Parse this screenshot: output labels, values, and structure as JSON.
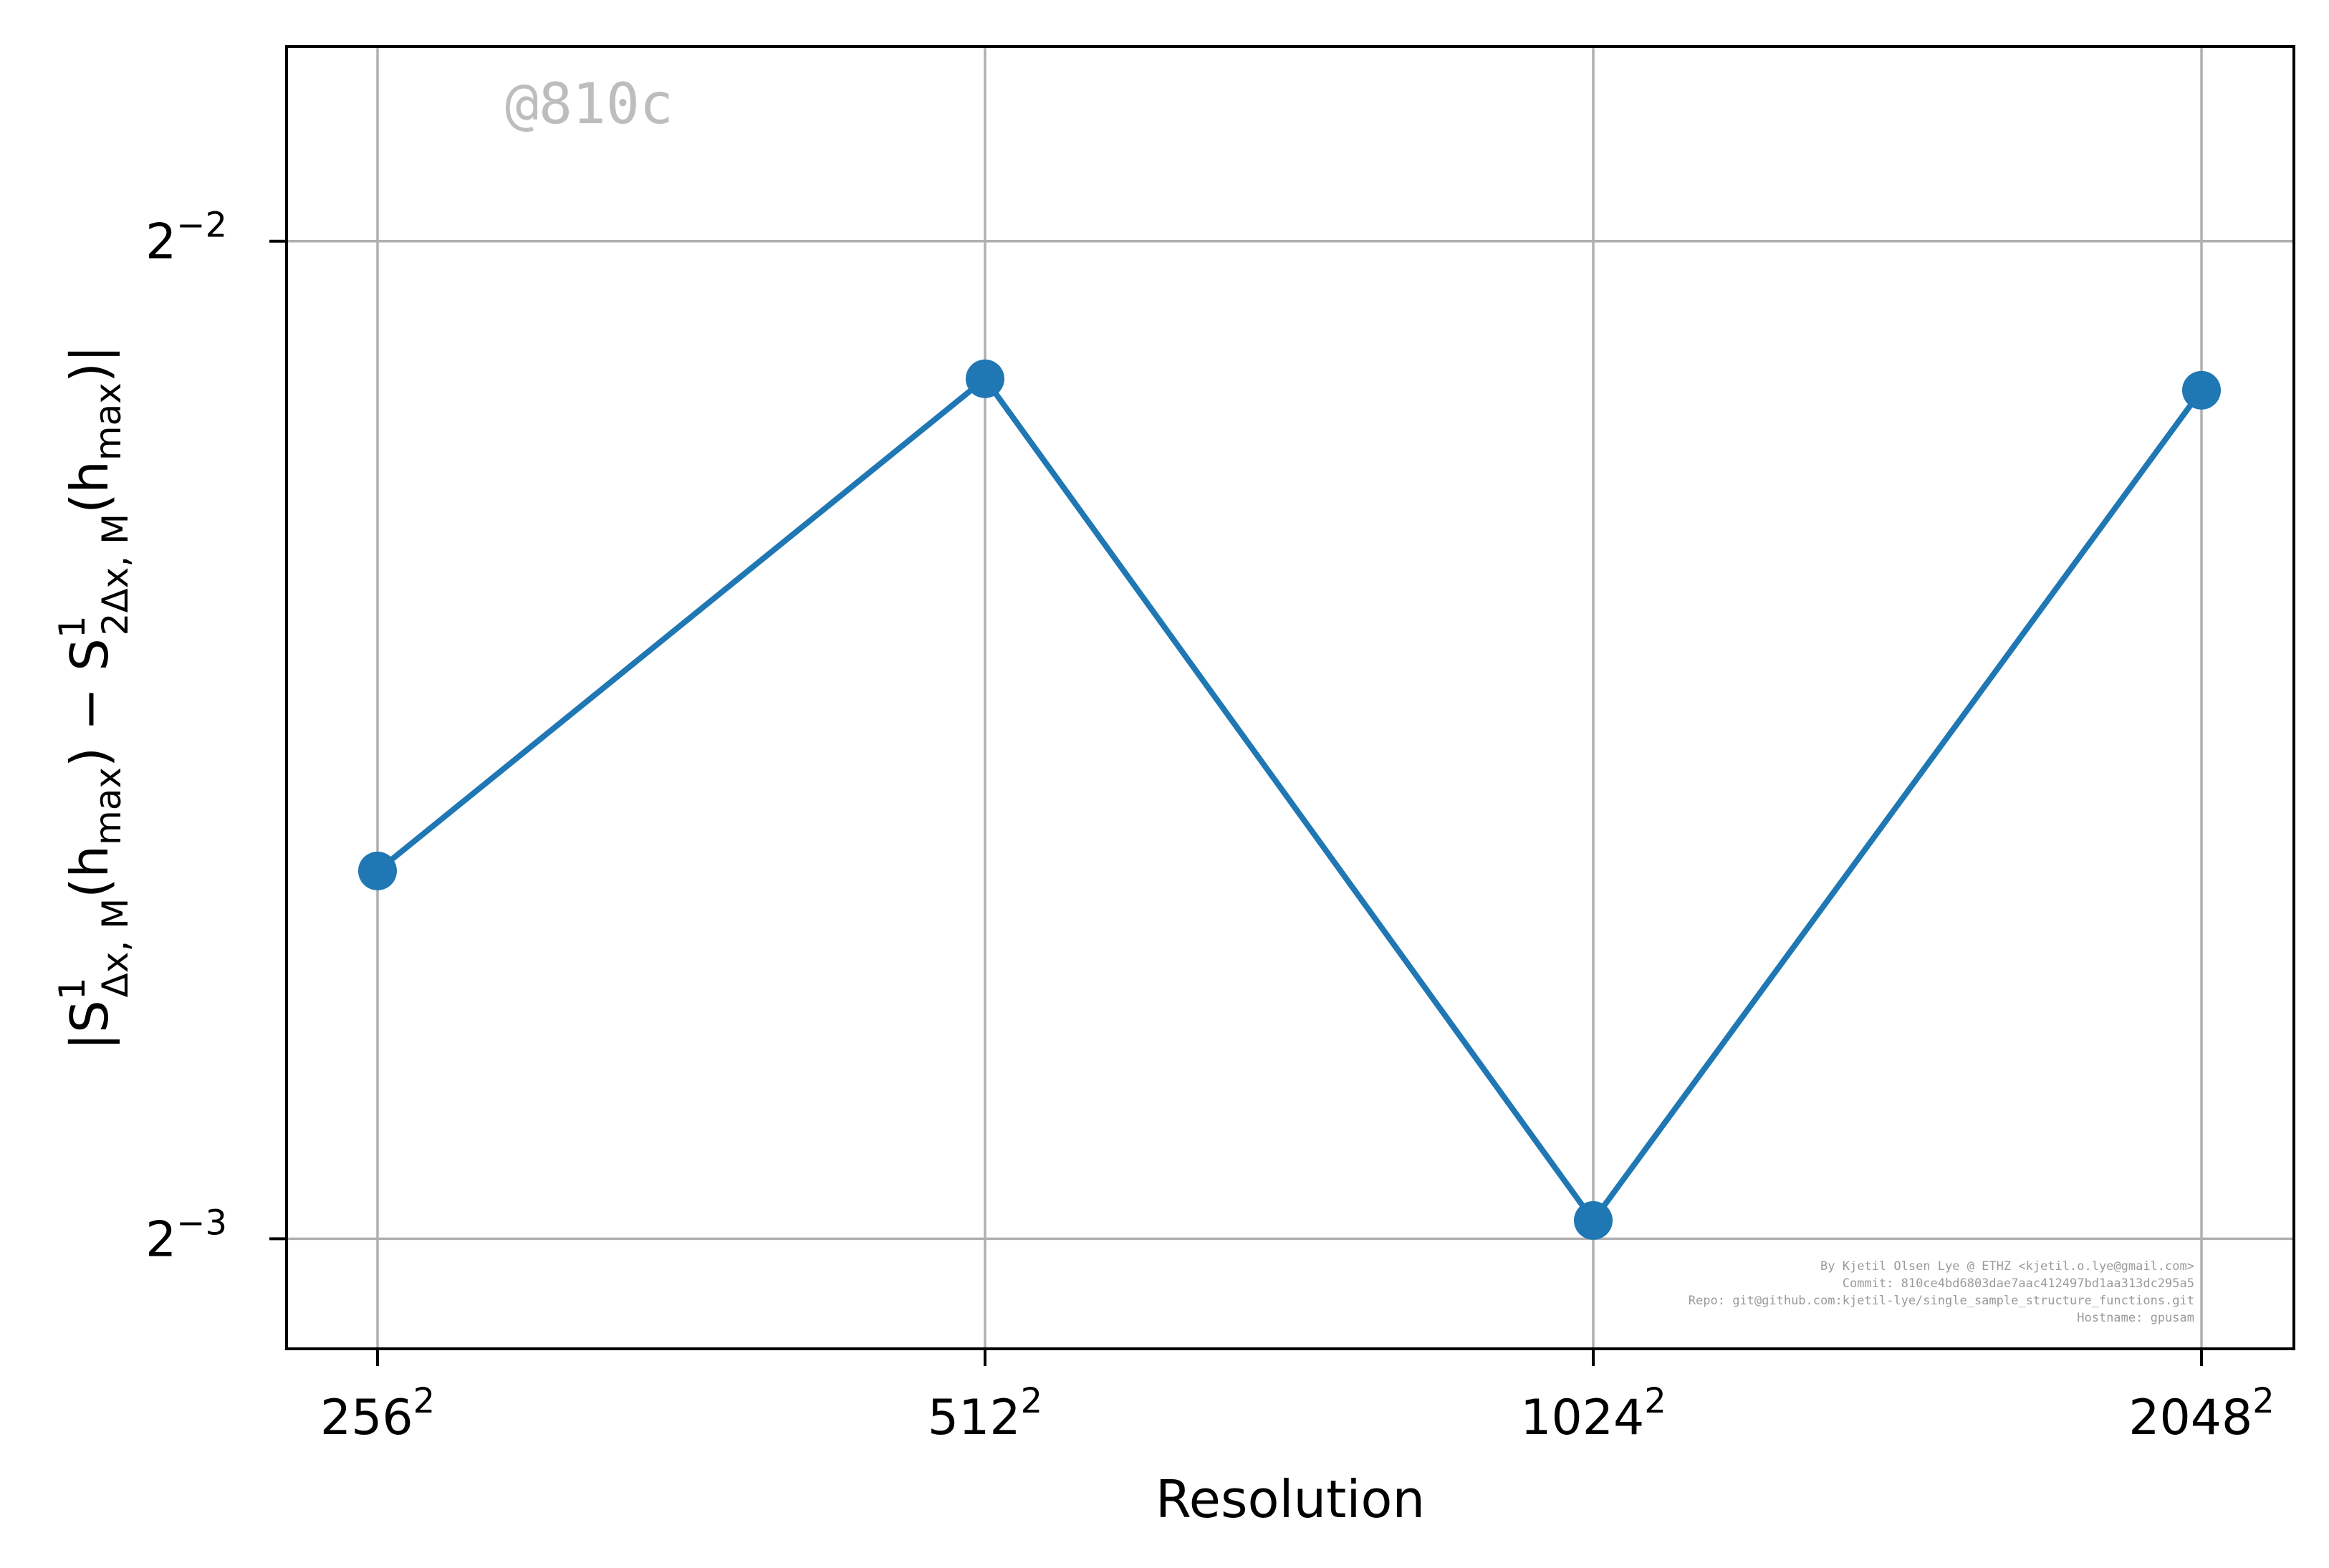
{
  "chart_data": {
    "type": "line",
    "x": [
      "256",
      "512",
      "1024",
      "2048"
    ],
    "x_exponent": "2",
    "series": [
      {
        "values": [
          0.1614,
          0.2272,
          0.1266,
          0.2254
        ]
      }
    ],
    "yscale": "log2",
    "ylim": [
      0.1158,
      0.2862
    ],
    "yticks": [
      {
        "value": 0.25,
        "base": "2",
        "exponent": "−2"
      },
      {
        "value": 0.125,
        "base": "2",
        "exponent": "−3"
      }
    ],
    "xlabel": "Resolution",
    "ylabel": {
      "open": "|S",
      "sup1": "1",
      "sub1": "Δx, M",
      "mid1": "(h",
      "sub2": "max",
      "mid2": ") − S",
      "sup2": "1",
      "sub3": "2Δx, M",
      "mid3": "(h",
      "sub4": "max",
      "close": ")|"
    },
    "grid": true,
    "line_color": "#1f77b4",
    "grid_color": "#b0b0b0",
    "watermark": "@810c",
    "credits": [
      "By Kjetil Olsen Lye @ ETHZ <kjetil.o.lye@gmail.com>",
      "Commit: 810ce4bd6803dae7aac412497bd1aa313dc295a5",
      "Repo: git@github.com:kjetil-lye/single_sample_structure_functions.git",
      "Hostname: gpusam"
    ]
  }
}
